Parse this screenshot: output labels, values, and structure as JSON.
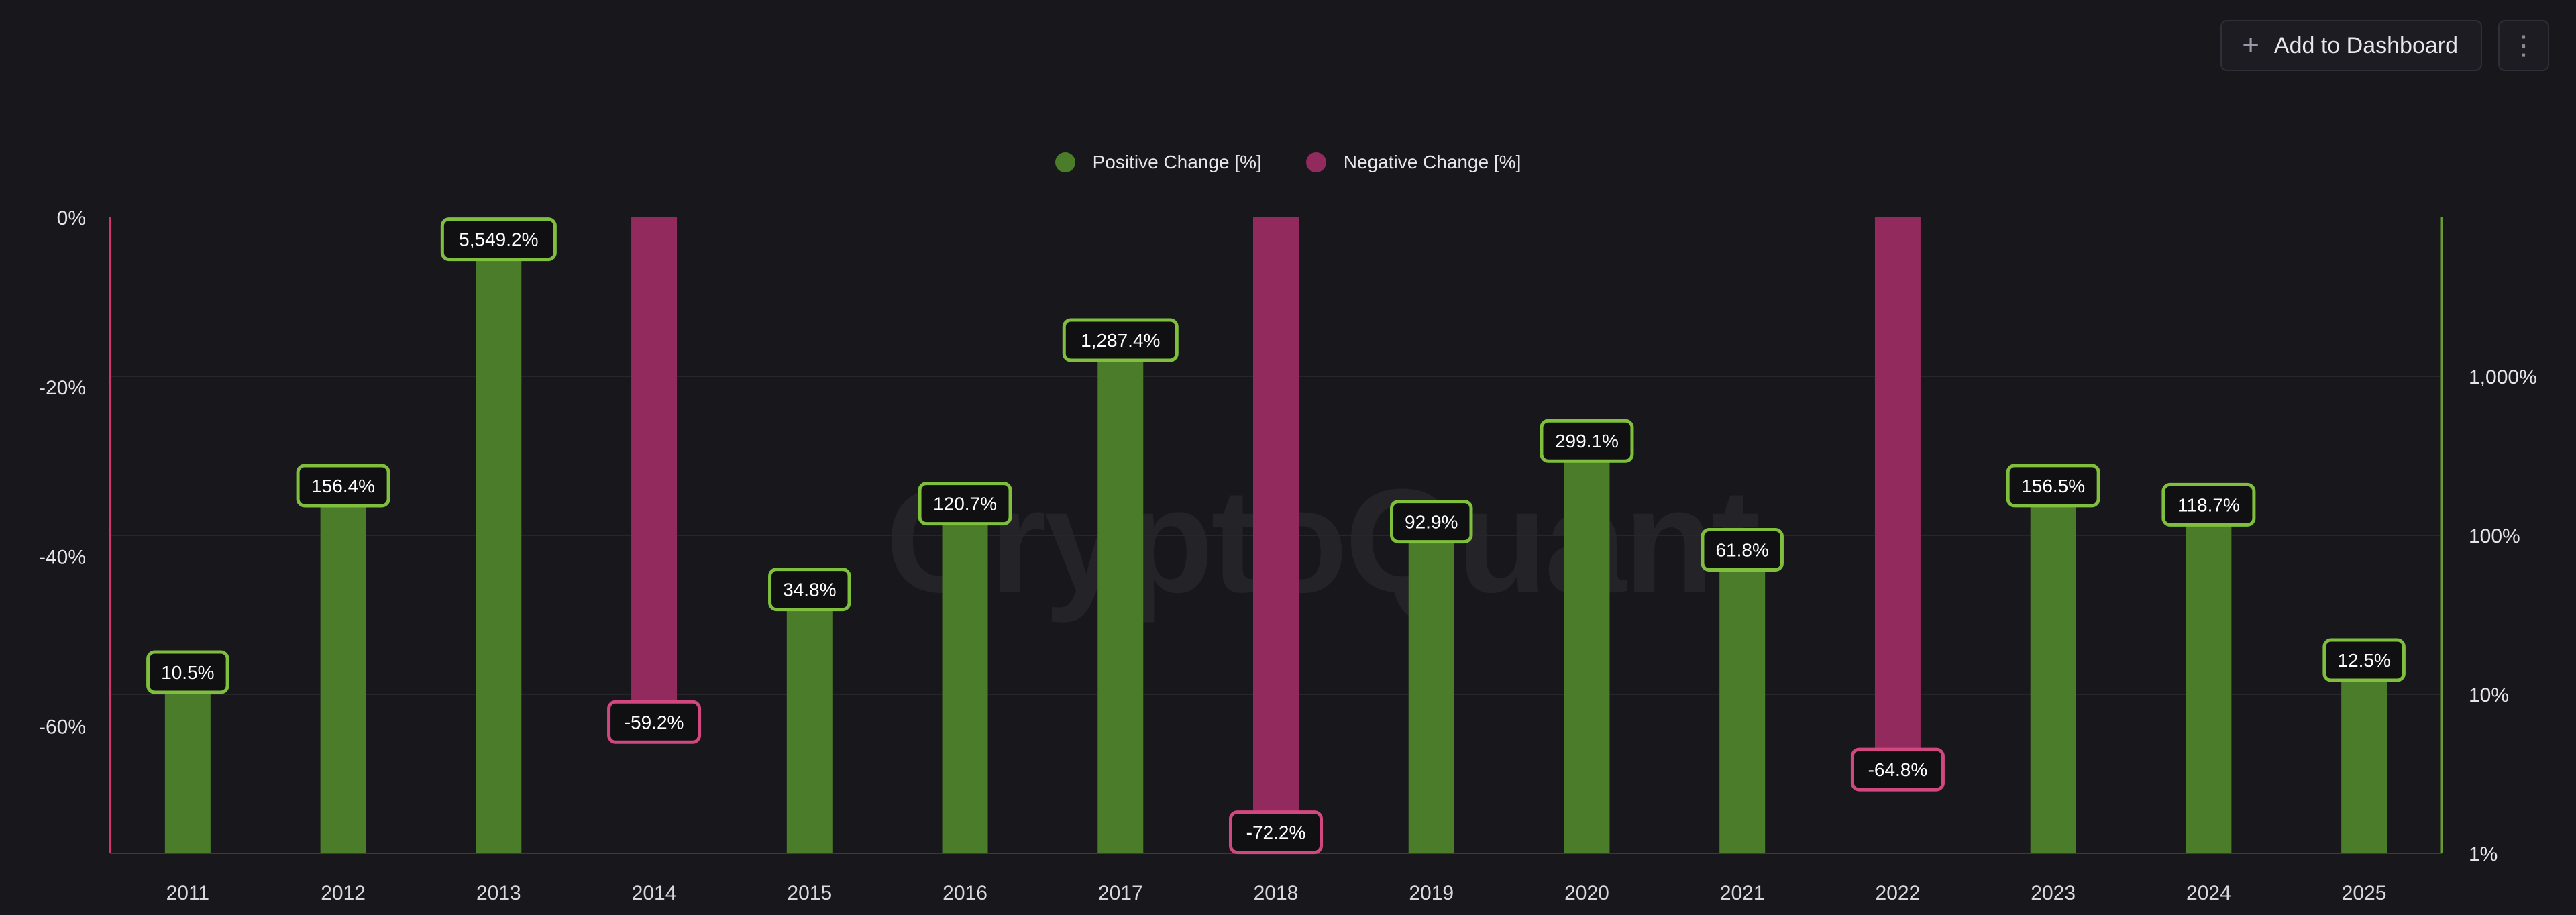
{
  "toolbar": {
    "add_label": "Add to Dashboard",
    "add_icon": "plus-icon",
    "more_icon": "vertical-dots-icon"
  },
  "watermark": "CryptoQuant",
  "colors": {
    "positive": "#4a7c2a",
    "positive_border": "#7fbf3d",
    "negative": "#932a5e",
    "negative_border": "#d1477f",
    "left_axis": "#d2356c",
    "right_axis": "#6a9b2f",
    "grid": "#26262d"
  },
  "chart_data": {
    "type": "bar",
    "title": "",
    "legend_position": "top-center",
    "grid": true,
    "categories": [
      "2011",
      "2012",
      "2013",
      "2014",
      "2015",
      "2016",
      "2017",
      "2018",
      "2019",
      "2020",
      "2021",
      "2022",
      "2023",
      "2024",
      "2025"
    ],
    "series": [
      {
        "name": "Positive Change [%]",
        "axis": "right",
        "values": [
          10.5,
          156.4,
          5549.2,
          null,
          34.8,
          120.7,
          1287.4,
          null,
          92.9,
          299.1,
          61.8,
          null,
          156.5,
          118.7,
          12.5
        ],
        "labels": [
          "10.5%",
          "156.4%",
          "5,549.2%",
          "",
          "34.8%",
          "120.7%",
          "1,287.4%",
          "",
          "92.9%",
          "299.1%",
          "61.8%",
          "",
          "156.5%",
          "118.7%",
          "12.5%"
        ]
      },
      {
        "name": "Negative Change [%]",
        "axis": "left",
        "values": [
          null,
          null,
          null,
          -59.2,
          null,
          null,
          null,
          -72.2,
          null,
          null,
          null,
          -64.8,
          null,
          null,
          null
        ],
        "labels": [
          "",
          "",
          "",
          "-59.2%",
          "",
          "",
          "",
          "-72.2%",
          "",
          "",
          "",
          "-64.8%",
          "",
          "",
          ""
        ]
      }
    ],
    "left_axis": {
      "scale": "linear",
      "ylim": [
        -75,
        0
      ],
      "ticks": [
        0,
        -20,
        -40,
        -60
      ],
      "tick_labels": [
        "0%",
        "-20%",
        "-40%",
        "-60%"
      ]
    },
    "right_axis": {
      "scale": "log",
      "ylim": [
        1,
        10000
      ],
      "ticks": [
        1,
        10,
        100,
        1000
      ],
      "tick_labels": [
        "1%",
        "10%",
        "100%",
        "1,000%"
      ]
    }
  }
}
